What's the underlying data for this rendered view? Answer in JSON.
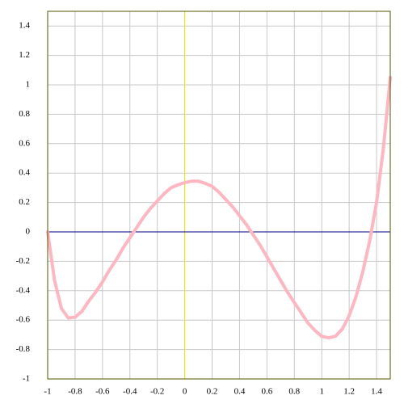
{
  "chart_data": {
    "type": "line",
    "x": [
      -1,
      -0.95,
      -0.9,
      -0.85,
      -0.8,
      -0.75,
      -0.7,
      -0.65,
      -0.6,
      -0.55,
      -0.5,
      -0.45,
      -0.4,
      -0.35,
      -0.3,
      -0.25,
      -0.2,
      -0.15,
      -0.1,
      -0.05,
      0,
      0.05,
      0.1,
      0.15,
      0.2,
      0.25,
      0.3,
      0.35,
      0.4,
      0.45,
      0.5,
      0.55,
      0.6,
      0.65,
      0.7,
      0.75,
      0.8,
      0.85,
      0.9,
      0.95,
      1.0,
      1.05,
      1.1,
      1.15,
      1.2,
      1.25,
      1.3,
      1.35,
      1.4,
      1.45,
      1.5
    ],
    "series": [
      {
        "color": "#ffb6c1",
        "values": [
          0,
          -0.33,
          -0.52,
          -0.585,
          -0.58,
          -0.54,
          -0.47,
          -0.41,
          -0.34,
          -0.26,
          -0.19,
          -0.11,
          -0.04,
          0.03,
          0.1,
          0.16,
          0.21,
          0.26,
          0.3,
          0.32,
          0.335,
          0.345,
          0.345,
          0.33,
          0.31,
          0.27,
          0.22,
          0.17,
          0.11,
          0.05,
          -0.02,
          -0.09,
          -0.17,
          -0.25,
          -0.33,
          -0.41,
          -0.48,
          -0.55,
          -0.62,
          -0.67,
          -0.71,
          -0.72,
          -0.71,
          -0.66,
          -0.57,
          -0.44,
          -0.27,
          -0.06,
          0.2,
          0.57,
          1.05
        ]
      }
    ],
    "xlim": [
      -1,
      1.5
    ],
    "ylim": [
      -1,
      1.5
    ],
    "xticks": [
      -1,
      -0.8,
      -0.6,
      -0.4,
      -0.2,
      0,
      0.2,
      0.4,
      0.6,
      0.8,
      1,
      1.2,
      1.4
    ],
    "yticks": [
      -1,
      -0.8,
      -0.6,
      -0.4,
      -0.2,
      0,
      0.2,
      0.4,
      0.6,
      0.8,
      1,
      1.2,
      1.4
    ],
    "grid": true,
    "zero_line_colors": {
      "vertical": "#e8e800",
      "horizontal": "#000080"
    }
  }
}
